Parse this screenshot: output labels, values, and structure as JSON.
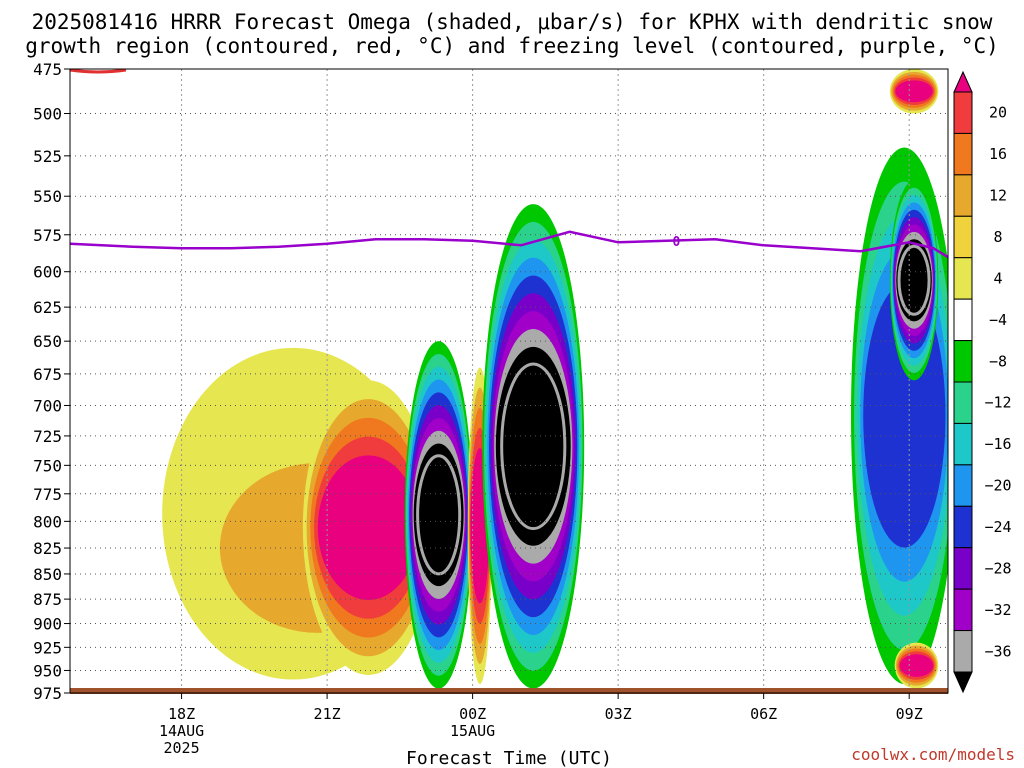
{
  "title": {
    "line1": "2025081416 HRRR Forecast Omega (shaded, μbar/s) for KPHX with dendritic snow",
    "line2": "growth region (contoured, red, °C) and freezing level (contoured, purple, °C)"
  },
  "credit": "coolwx.com/models",
  "chart_data": {
    "type": "heatmap",
    "xlabel": "Forecast Time (UTC)",
    "ylabel": "",
    "x_range_hours_utc": [
      15.7,
      33.8
    ],
    "y_range_mb": [
      975,
      475
    ],
    "y_scale": "log",
    "grid": true,
    "y_ticks": [
      475,
      500,
      525,
      550,
      575,
      600,
      625,
      650,
      675,
      700,
      725,
      750,
      775,
      800,
      825,
      850,
      875,
      900,
      925,
      950,
      975
    ],
    "x_ticks": [
      {
        "hour": 18,
        "label": "18Z",
        "date": "14AUG",
        "year": "2025"
      },
      {
        "hour": 21,
        "label": "21Z",
        "date": "",
        "year": ""
      },
      {
        "hour": 24,
        "label": "00Z",
        "date": "15AUG",
        "year": ""
      },
      {
        "hour": 27,
        "label": "03Z",
        "date": "",
        "year": ""
      },
      {
        "hour": 30,
        "label": "06Z",
        "date": "",
        "year": ""
      },
      {
        "hour": 33,
        "label": "09Z",
        "date": "",
        "year": ""
      }
    ],
    "colorbar": {
      "ticks": [
        "20",
        "16",
        "12",
        "8",
        "4",
        "−4",
        "−8",
        "−12",
        "−16",
        "−20",
        "−24",
        "−28",
        "−32",
        "−36"
      ],
      "colors": [
        "#e8007e",
        "#f03c3c",
        "#f0781e",
        "#e6a82d",
        "#f0d23c",
        "#e6e650",
        "#ffffff",
        "#00c800",
        "#2ad28c",
        "#1ec8c8",
        "#1e96f0",
        "#1e32d2",
        "#7800c8",
        "#a000c8",
        "#aaaaaa",
        "#000000"
      ]
    },
    "freezing_level": {
      "label": "0",
      "color": "#9900cc",
      "points": [
        [
          15.7,
          581
        ],
        [
          17,
          583
        ],
        [
          18,
          584
        ],
        [
          19,
          584
        ],
        [
          20,
          583
        ],
        [
          21,
          581
        ],
        [
          22,
          578
        ],
        [
          23,
          578
        ],
        [
          24,
          579
        ],
        [
          25,
          582
        ],
        [
          26,
          573
        ],
        [
          27,
          580
        ],
        [
          28,
          579
        ],
        [
          29,
          578
        ],
        [
          30,
          582
        ],
        [
          31,
          584
        ],
        [
          32,
          586
        ],
        [
          33,
          580
        ],
        [
          33.5,
          584
        ],
        [
          33.8,
          590
        ]
      ]
    },
    "dgz_contour_color": "#e03030",
    "omega_regions": [
      {
        "x": [
          15.7,
          17.2
        ],
        "y": [
          575,
          975
        ],
        "value": 0
      },
      {
        "x": [
          17.6,
          23.0
        ],
        "y": [
          655,
          960
        ],
        "value": 6
      },
      {
        "x": [
          18.5,
          23.1
        ],
        "y": [
          720,
          945
        ],
        "value": 10
      },
      {
        "x": [
          20.5,
          23.2
        ],
        "y": [
          680,
          955
        ],
        "value": 20
      },
      {
        "x": [
          22.6,
          24.0
        ],
        "y": [
          650,
          970
        ],
        "value": -36
      },
      {
        "x": [
          23.9,
          24.4
        ],
        "y": [
          670,
          965
        ],
        "value": 20
      },
      {
        "x": [
          24.2,
          26.3
        ],
        "y": [
          555,
          970
        ],
        "value": -36
      },
      {
        "x": [
          31.8,
          34.0
        ],
        "y": [
          520,
          965
        ],
        "value": -20
      },
      {
        "x": [
          32.6,
          33.6
        ],
        "y": [
          540,
          680
        ],
        "value": -36
      },
      {
        "x": [
          32.7,
          33.6
        ],
        "y": [
          920,
          970
        ],
        "value": 20
      },
      {
        "x": [
          32.6,
          33.6
        ],
        "y": [
          475,
          500
        ],
        "value": 20
      }
    ]
  }
}
